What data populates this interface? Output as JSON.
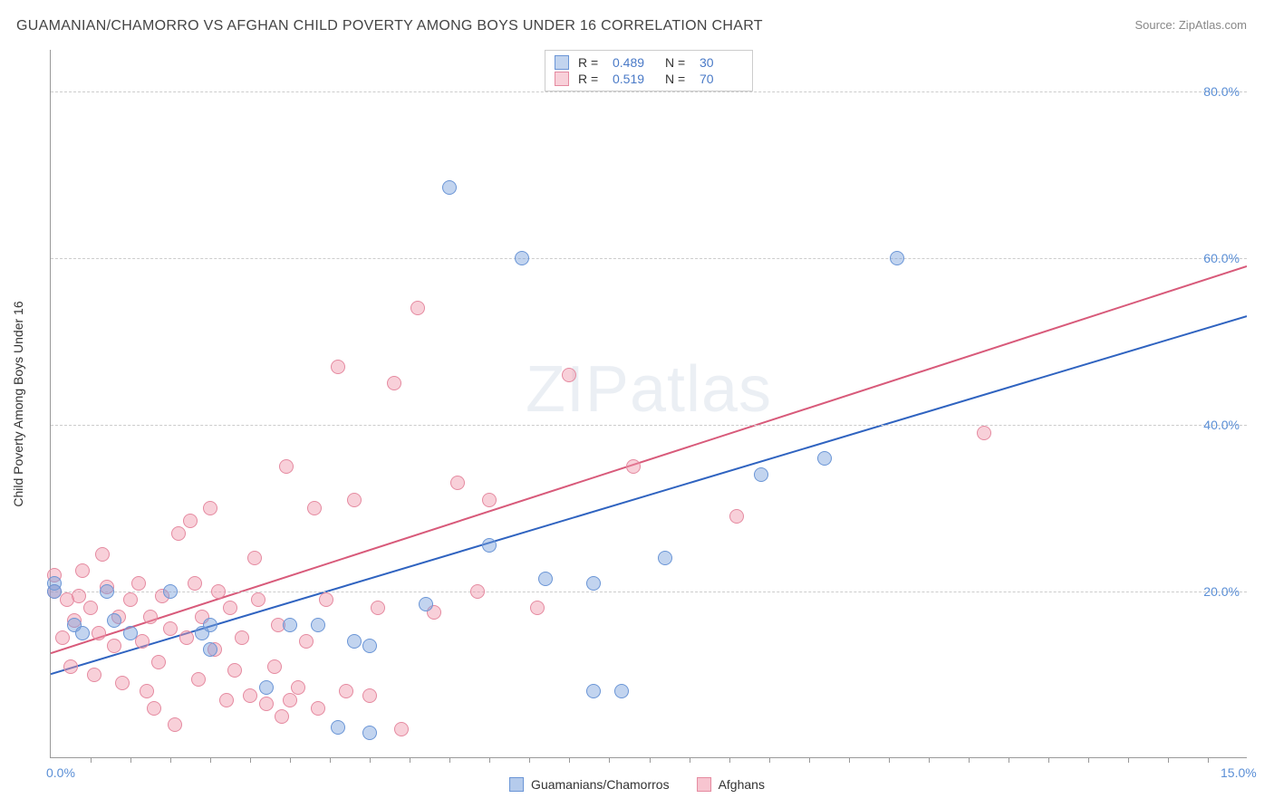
{
  "title": "GUAMANIAN/CHAMORRO VS AFGHAN CHILD POVERTY AMONG BOYS UNDER 16 CORRELATION CHART",
  "source": "Source: ZipAtlas.com",
  "ylabel": "Child Poverty Among Boys Under 16",
  "watermark": {
    "part1": "ZIP",
    "part2": "atlas"
  },
  "chart": {
    "type": "scatter",
    "background_color": "#ffffff",
    "grid_color": "#cccccc",
    "axis_color": "#999999",
    "tick_label_color": "#5b8fd6",
    "tick_fontsize": 14,
    "xlim": [
      0,
      15
    ],
    "ylim": [
      0,
      85
    ],
    "x_ticks": [
      {
        "pos": 0,
        "label": "0.0%"
      },
      {
        "pos": 15,
        "label": "15.0%"
      }
    ],
    "x_minor_ticks": [
      0.5,
      1,
      1.5,
      2,
      2.5,
      3,
      3.5,
      4,
      4.5,
      5,
      5.5,
      6,
      6.5,
      7,
      7.5,
      8,
      8.5,
      9,
      9.5,
      10,
      10.5,
      11,
      11.5,
      12,
      12.5,
      13,
      13.5,
      14,
      14.5
    ],
    "y_ticks": [
      {
        "pos": 20,
        "label": "20.0%"
      },
      {
        "pos": 40,
        "label": "40.0%"
      },
      {
        "pos": 60,
        "label": "60.0%"
      },
      {
        "pos": 80,
        "label": "80.0%"
      }
    ],
    "series": [
      {
        "name": "Guamanians/Chamorros",
        "marker_fill": "rgba(120,160,220,0.45)",
        "marker_stroke": "#6a95d6",
        "marker_radius": 8,
        "trend_color": "#2f63c0",
        "trend_width": 2,
        "trend": {
          "x1": 0,
          "y1": 10,
          "x2": 15,
          "y2": 53
        },
        "stats": {
          "R": "0.489",
          "N": "30"
        },
        "points": [
          [
            0.05,
            21
          ],
          [
            0.05,
            20
          ],
          [
            0.3,
            16
          ],
          [
            0.4,
            15
          ],
          [
            0.7,
            20
          ],
          [
            0.8,
            16.5
          ],
          [
            1.0,
            15
          ],
          [
            1.5,
            20
          ],
          [
            1.9,
            15
          ],
          [
            2.0,
            16
          ],
          [
            2.0,
            13
          ],
          [
            2.7,
            8.5
          ],
          [
            3.0,
            16
          ],
          [
            3.35,
            16
          ],
          [
            3.8,
            14
          ],
          [
            3.6,
            3.7
          ],
          [
            4.0,
            13.5
          ],
          [
            4.0,
            3
          ],
          [
            4.7,
            18.5
          ],
          [
            5.0,
            68.5
          ],
          [
            5.5,
            25.5
          ],
          [
            5.9,
            60
          ],
          [
            6.2,
            21.5
          ],
          [
            6.8,
            21
          ],
          [
            6.8,
            8
          ],
          [
            7.15,
            8
          ],
          [
            7.7,
            24
          ],
          [
            8.9,
            34
          ],
          [
            9.7,
            36
          ],
          [
            10.6,
            60
          ]
        ]
      },
      {
        "name": "Afghans",
        "marker_fill": "rgba(240,150,170,0.45)",
        "marker_stroke": "#e58aa0",
        "marker_radius": 8,
        "trend_color": "#d85a7a",
        "trend_width": 2,
        "trend": {
          "x1": 0,
          "y1": 12.5,
          "x2": 15,
          "y2": 59
        },
        "stats": {
          "R": "0.519",
          "N": "70"
        },
        "points": [
          [
            0.05,
            22
          ],
          [
            0.05,
            20
          ],
          [
            0.15,
            14.5
          ],
          [
            0.2,
            19
          ],
          [
            0.25,
            11
          ],
          [
            0.3,
            16.5
          ],
          [
            0.35,
            19.5
          ],
          [
            0.4,
            22.5
          ],
          [
            0.5,
            18
          ],
          [
            0.55,
            10
          ],
          [
            0.6,
            15
          ],
          [
            0.65,
            24.5
          ],
          [
            0.7,
            20.5
          ],
          [
            0.8,
            13.5
          ],
          [
            0.85,
            17
          ],
          [
            0.9,
            9
          ],
          [
            1.0,
            19
          ],
          [
            1.1,
            21
          ],
          [
            1.15,
            14
          ],
          [
            1.2,
            8
          ],
          [
            1.25,
            17
          ],
          [
            1.35,
            11.5
          ],
          [
            1.4,
            19.5
          ],
          [
            1.5,
            15.5
          ],
          [
            1.55,
            4
          ],
          [
            1.6,
            27
          ],
          [
            1.7,
            14.5
          ],
          [
            1.75,
            28.5
          ],
          [
            1.8,
            21
          ],
          [
            1.85,
            9.5
          ],
          [
            1.9,
            17
          ],
          [
            2.0,
            30
          ],
          [
            2.05,
            13
          ],
          [
            2.1,
            20
          ],
          [
            2.2,
            7
          ],
          [
            2.25,
            18
          ],
          [
            2.3,
            10.5
          ],
          [
            2.4,
            14.5
          ],
          [
            2.5,
            7.5
          ],
          [
            2.55,
            24
          ],
          [
            2.6,
            19
          ],
          [
            2.7,
            6.5
          ],
          [
            2.8,
            11
          ],
          [
            2.85,
            16
          ],
          [
            2.95,
            35
          ],
          [
            3.0,
            7
          ],
          [
            3.1,
            8.5
          ],
          [
            3.2,
            14
          ],
          [
            3.3,
            30
          ],
          [
            3.35,
            6
          ],
          [
            3.45,
            19
          ],
          [
            3.6,
            47
          ],
          [
            3.7,
            8
          ],
          [
            3.8,
            31
          ],
          [
            4.0,
            7.5
          ],
          [
            4.1,
            18
          ],
          [
            4.3,
            45
          ],
          [
            4.6,
            54
          ],
          [
            4.8,
            17.5
          ],
          [
            5.1,
            33
          ],
          [
            5.35,
            20
          ],
          [
            5.5,
            31
          ],
          [
            6.1,
            18
          ],
          [
            6.5,
            46
          ],
          [
            7.3,
            35
          ],
          [
            8.6,
            29
          ],
          [
            11.7,
            39
          ],
          [
            4.4,
            3.5
          ],
          [
            2.9,
            5
          ],
          [
            1.3,
            6
          ]
        ]
      }
    ]
  },
  "bottom_legend": [
    {
      "label": "Guamanians/Chamorros",
      "fill": "rgba(120,160,220,0.55)",
      "stroke": "#6a95d6"
    },
    {
      "label": "Afghans",
      "fill": "rgba(240,150,170,0.55)",
      "stroke": "#e58aa0"
    }
  ]
}
